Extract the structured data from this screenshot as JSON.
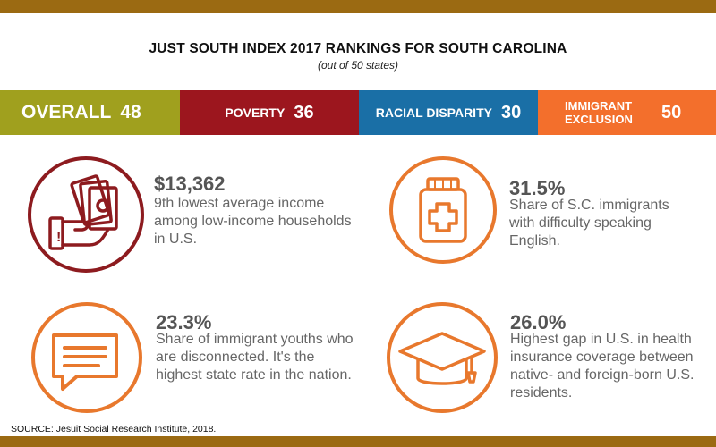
{
  "title": "JUST SOUTH INDEX 2017 RANKINGS FOR SOUTH CAROLINA",
  "subtitle": "(out of 50 states)",
  "rankings": [
    {
      "label": "OVERALL",
      "value": "48",
      "color": "#a0a01e"
    },
    {
      "label": "POVERTY",
      "value": "36",
      "color": "#9c161e"
    },
    {
      "label": "RACIAL DISPARITY",
      "value": "30",
      "color": "#1a6fa6"
    },
    {
      "label": "IMMIGRANT EXCLUSION",
      "value": "50",
      "color": "#f36f2c"
    }
  ],
  "stats": [
    {
      "value": "$13,362",
      "description": "9th lowest average income among low-income households in U.S.",
      "icon": "money-hand-icon"
    },
    {
      "value": "31.5%",
      "description": "Share of S.C. immigrants with difficulty speaking English.",
      "icon": "medicine-bottle-icon"
    },
    {
      "value": "23.3%",
      "description": "Share of immigrant youths who are disconnected.  It's the highest state rate in the nation.",
      "icon": "speech-bubble-icon"
    },
    {
      "value": "26.0%",
      "description": "Highest gap in U.S. in health insurance coverage between native- and foreign-born U.S. residents.",
      "icon": "graduation-cap-icon"
    }
  ],
  "source": "SOURCE: Jesuit Social Research Institute, 2018.",
  "colors": {
    "frame": "#9b6a12",
    "icon_red": "#8d1b1f",
    "icon_orange": "#e8782d"
  }
}
